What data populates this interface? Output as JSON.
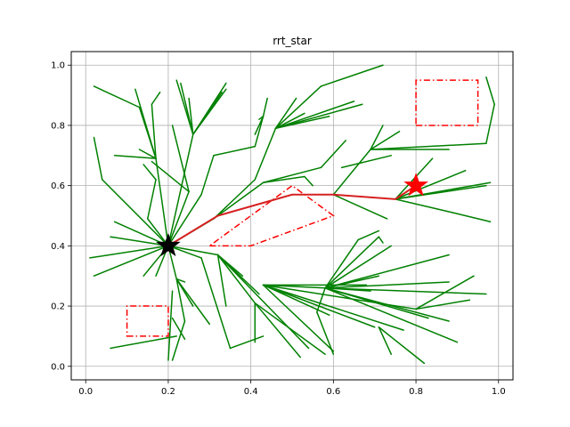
{
  "chart_data": {
    "type": "line",
    "title": "rrt_star",
    "xlabel": "",
    "ylabel": "",
    "xlim": [
      -0.035,
      1.035
    ],
    "ylim": [
      -0.045,
      1.045
    ],
    "xticks": [
      0.0,
      0.2,
      0.4,
      0.6,
      0.8,
      1.0
    ],
    "yticks": [
      0.0,
      0.2,
      0.4,
      0.6,
      0.8,
      1.0
    ],
    "xtick_labels": [
      "0.0",
      "0.2",
      "0.4",
      "0.6",
      "0.8",
      "1.0"
    ],
    "ytick_labels": [
      "0.0",
      "0.2",
      "0.4",
      "0.6",
      "0.8",
      "1.0"
    ],
    "grid": true,
    "colors": {
      "tree": "#008000",
      "path": "#d62020",
      "obstacle": "#ff0000",
      "goal": "#ff0000",
      "start": "#000000",
      "grid": "#b0b0b0"
    },
    "start": [
      0.2,
      0.4
    ],
    "goal": [
      0.8,
      0.6
    ],
    "path": [
      [
        0.2,
        0.4
      ],
      [
        0.32,
        0.5
      ],
      [
        0.5,
        0.57
      ],
      [
        0.6,
        0.57
      ],
      [
        0.75,
        0.555
      ],
      [
        0.8,
        0.6
      ]
    ],
    "obstacles": [
      {
        "shape": "rectangle",
        "points": [
          [
            0.1,
            0.1
          ],
          [
            0.2,
            0.1
          ],
          [
            0.2,
            0.2
          ],
          [
            0.1,
            0.2
          ]
        ]
      },
      {
        "shape": "rectangle",
        "points": [
          [
            0.8,
            0.8
          ],
          [
            0.95,
            0.8
          ],
          [
            0.95,
            0.95
          ],
          [
            0.8,
            0.95
          ]
        ]
      },
      {
        "shape": "polygon",
        "points": [
          [
            0.3,
            0.4
          ],
          [
            0.4,
            0.4
          ],
          [
            0.6,
            0.5
          ],
          [
            0.5,
            0.6
          ]
        ]
      }
    ],
    "tree_edges": [
      [
        [
          0.2,
          0.4
        ],
        [
          0.01,
          0.36
        ]
      ],
      [
        [
          0.2,
          0.4
        ],
        [
          0.02,
          0.3
        ]
      ],
      [
        [
          0.2,
          0.4
        ],
        [
          0.06,
          0.43
        ]
      ],
      [
        [
          0.2,
          0.4
        ],
        [
          0.07,
          0.48
        ]
      ],
      [
        [
          0.2,
          0.4
        ],
        [
          0.04,
          0.62
        ]
      ],
      [
        [
          0.04,
          0.62
        ],
        [
          0.02,
          0.76
        ]
      ],
      [
        [
          0.2,
          0.4
        ],
        [
          0.15,
          0.49
        ]
      ],
      [
        [
          0.15,
          0.49
        ],
        [
          0.17,
          0.62
        ]
      ],
      [
        [
          0.17,
          0.62
        ],
        [
          0.14,
          0.67
        ]
      ],
      [
        [
          0.2,
          0.4
        ],
        [
          0.17,
          0.69
        ]
      ],
      [
        [
          0.17,
          0.69
        ],
        [
          0.13,
          0.86
        ]
      ],
      [
        [
          0.13,
          0.86
        ],
        [
          0.02,
          0.93
        ]
      ],
      [
        [
          0.17,
          0.69
        ],
        [
          0.12,
          0.92
        ]
      ],
      [
        [
          0.17,
          0.69
        ],
        [
          0.16,
          0.87
        ]
      ],
      [
        [
          0.16,
          0.87
        ],
        [
          0.18,
          0.91
        ]
      ],
      [
        [
          0.17,
          0.69
        ],
        [
          0.13,
          0.72
        ]
      ],
      [
        [
          0.17,
          0.69
        ],
        [
          0.07,
          0.7
        ]
      ],
      [
        [
          0.2,
          0.4
        ],
        [
          0.25,
          0.58
        ]
      ],
      [
        [
          0.25,
          0.58
        ],
        [
          0.16,
          0.68
        ]
      ],
      [
        [
          0.25,
          0.58
        ],
        [
          0.21,
          0.8
        ]
      ],
      [
        [
          0.2,
          0.4
        ],
        [
          0.26,
          0.77
        ]
      ],
      [
        [
          0.26,
          0.77
        ],
        [
          0.22,
          0.95
        ]
      ],
      [
        [
          0.26,
          0.77
        ],
        [
          0.23,
          0.94
        ]
      ],
      [
        [
          0.26,
          0.77
        ],
        [
          0.25,
          0.89
        ]
      ],
      [
        [
          0.26,
          0.77
        ],
        [
          0.34,
          0.94
        ]
      ],
      [
        [
          0.26,
          0.77
        ],
        [
          0.33,
          0.91
        ]
      ],
      [
        [
          0.26,
          0.77
        ],
        [
          0.34,
          0.92
        ]
      ],
      [
        [
          0.26,
          0.77
        ],
        [
          0.31,
          0.87
        ]
      ],
      [
        [
          0.2,
          0.4
        ],
        [
          0.28,
          0.57
        ]
      ],
      [
        [
          0.28,
          0.57
        ],
        [
          0.31,
          0.7
        ]
      ],
      [
        [
          0.31,
          0.7
        ],
        [
          0.41,
          0.73
        ]
      ],
      [
        [
          0.41,
          0.73
        ],
        [
          0.43,
          0.83
        ]
      ],
      [
        [
          0.2,
          0.4
        ],
        [
          0.31,
          0.49
        ]
      ],
      [
        [
          0.31,
          0.49
        ],
        [
          0.41,
          0.62
        ]
      ],
      [
        [
          0.41,
          0.62
        ],
        [
          0.46,
          0.79
        ]
      ],
      [
        [
          0.46,
          0.79
        ],
        [
          0.53,
          0.84
        ]
      ],
      [
        [
          0.46,
          0.79
        ],
        [
          0.57,
          0.93
        ]
      ],
      [
        [
          0.57,
          0.93
        ],
        [
          0.72,
          1.0
        ]
      ],
      [
        [
          0.46,
          0.79
        ],
        [
          0.51,
          0.89
        ]
      ],
      [
        [
          0.46,
          0.79
        ],
        [
          0.65,
          0.88
        ]
      ],
      [
        [
          0.46,
          0.79
        ],
        [
          0.67,
          0.87
        ]
      ],
      [
        [
          0.46,
          0.79
        ],
        [
          0.59,
          0.83
        ]
      ],
      [
        [
          0.43,
          0.83
        ],
        [
          0.41,
          0.77
        ]
      ],
      [
        [
          0.43,
          0.83
        ],
        [
          0.44,
          0.89
        ]
      ],
      [
        [
          0.43,
          0.83
        ],
        [
          0.42,
          0.82
        ]
      ],
      [
        [
          0.31,
          0.49
        ],
        [
          0.43,
          0.61
        ]
      ],
      [
        [
          0.43,
          0.61
        ],
        [
          0.57,
          0.66
        ]
      ],
      [
        [
          0.57,
          0.66
        ],
        [
          0.63,
          0.75
        ]
      ],
      [
        [
          0.43,
          0.61
        ],
        [
          0.53,
          0.63
        ]
      ],
      [
        [
          0.53,
          0.63
        ],
        [
          0.55,
          0.6
        ]
      ],
      [
        [
          0.6,
          0.57
        ],
        [
          0.73,
          0.49
        ]
      ],
      [
        [
          0.6,
          0.57
        ],
        [
          0.69,
          0.72
        ]
      ],
      [
        [
          0.69,
          0.72
        ],
        [
          0.72,
          0.8
        ]
      ],
      [
        [
          0.69,
          0.72
        ],
        [
          0.76,
          0.78
        ]
      ],
      [
        [
          0.69,
          0.72
        ],
        [
          0.97,
          0.74
        ]
      ],
      [
        [
          0.97,
          0.74
        ],
        [
          0.99,
          0.87
        ]
      ],
      [
        [
          0.99,
          0.87
        ],
        [
          0.97,
          0.96
        ]
      ],
      [
        [
          0.69,
          0.72
        ],
        [
          0.88,
          0.72
        ]
      ],
      [
        [
          0.62,
          0.66
        ],
        [
          0.74,
          0.7
        ]
      ],
      [
        [
          0.75,
          0.555
        ],
        [
          0.92,
          0.65
        ]
      ],
      [
        [
          0.75,
          0.555
        ],
        [
          0.98,
          0.61
        ]
      ],
      [
        [
          0.75,
          0.555
        ],
        [
          0.97,
          0.6
        ]
      ],
      [
        [
          0.75,
          0.555
        ],
        [
          0.89,
          0.51
        ]
      ],
      [
        [
          0.89,
          0.51
        ],
        [
          0.98,
          0.48
        ]
      ],
      [
        [
          0.75,
          0.555
        ],
        [
          0.84,
          0.69
        ]
      ],
      [
        [
          0.2,
          0.4
        ],
        [
          0.32,
          0.37
        ]
      ],
      [
        [
          0.32,
          0.37
        ],
        [
          0.34,
          0.2
        ]
      ],
      [
        [
          0.32,
          0.37
        ],
        [
          0.42,
          0.24
        ]
      ],
      [
        [
          0.32,
          0.37
        ],
        [
          0.38,
          0.3
        ]
      ],
      [
        [
          0.32,
          0.37
        ],
        [
          0.54,
          0.06
        ]
      ],
      [
        [
          0.32,
          0.37
        ],
        [
          0.41,
          0.21
        ]
      ],
      [
        [
          0.41,
          0.21
        ],
        [
          0.52,
          0.03
        ]
      ],
      [
        [
          0.41,
          0.21
        ],
        [
          0.41,
          0.08
        ]
      ],
      [
        [
          0.41,
          0.21
        ],
        [
          0.58,
          0.04
        ]
      ],
      [
        [
          0.2,
          0.4
        ],
        [
          0.28,
          0.36
        ]
      ],
      [
        [
          0.28,
          0.36
        ],
        [
          0.35,
          0.06
        ]
      ],
      [
        [
          0.35,
          0.06
        ],
        [
          0.43,
          0.1
        ]
      ],
      [
        [
          0.2,
          0.4
        ],
        [
          0.14,
          0.3
        ]
      ],
      [
        [
          0.2,
          0.4
        ],
        [
          0.22,
          0.29
        ]
      ],
      [
        [
          0.22,
          0.29
        ],
        [
          0.24,
          0.15
        ]
      ],
      [
        [
          0.24,
          0.15
        ],
        [
          0.21,
          0.02
        ]
      ],
      [
        [
          0.22,
          0.29
        ],
        [
          0.3,
          0.14
        ]
      ],
      [
        [
          0.22,
          0.29
        ],
        [
          0.26,
          0.2
        ]
      ],
      [
        [
          0.22,
          0.29
        ],
        [
          0.24,
          0.28
        ]
      ],
      [
        [
          0.21,
          0.25
        ],
        [
          0.2,
          0.02
        ]
      ],
      [
        [
          0.22,
          0.1
        ],
        [
          0.06,
          0.06
        ]
      ],
      [
        [
          0.21,
          0.16
        ],
        [
          0.24,
          0.09
        ]
      ],
      [
        [
          0.2,
          0.4
        ],
        [
          0.17,
          0.3
        ]
      ],
      [
        [
          0.43,
          0.27
        ],
        [
          0.59,
          0.17
        ]
      ],
      [
        [
          0.43,
          0.27
        ],
        [
          0.6,
          0.05
        ]
      ],
      [
        [
          0.43,
          0.27
        ],
        [
          0.7,
          0.13
        ]
      ],
      [
        [
          0.43,
          0.27
        ],
        [
          0.77,
          0.12
        ]
      ],
      [
        [
          0.43,
          0.27
        ],
        [
          0.8,
          0.19
        ]
      ],
      [
        [
          0.43,
          0.27
        ],
        [
          0.68,
          0.27
        ]
      ],
      [
        [
          0.43,
          0.27
        ],
        [
          0.58,
          0.26
        ]
      ],
      [
        [
          0.58,
          0.26
        ],
        [
          0.71,
          0.3
        ]
      ],
      [
        [
          0.58,
          0.26
        ],
        [
          0.74,
          0.4
        ]
      ],
      [
        [
          0.58,
          0.26
        ],
        [
          0.88,
          0.37
        ]
      ],
      [
        [
          0.58,
          0.26
        ],
        [
          0.66,
          0.42
        ]
      ],
      [
        [
          0.66,
          0.42
        ],
        [
          0.71,
          0.45
        ]
      ],
      [
        [
          0.58,
          0.26
        ],
        [
          0.97,
          0.24
        ]
      ],
      [
        [
          0.58,
          0.26
        ],
        [
          0.88,
          0.28
        ]
      ],
      [
        [
          0.58,
          0.26
        ],
        [
          0.71,
          0.43
        ]
      ],
      [
        [
          0.71,
          0.43
        ],
        [
          0.72,
          0.41
        ]
      ],
      [
        [
          0.58,
          0.26
        ],
        [
          0.69,
          0.25
        ]
      ],
      [
        [
          0.58,
          0.26
        ],
        [
          0.88,
          0.15
        ]
      ],
      [
        [
          0.58,
          0.26
        ],
        [
          0.56,
          0.18
        ]
      ],
      [
        [
          0.56,
          0.18
        ],
        [
          0.6,
          0.04
        ]
      ],
      [
        [
          0.71,
          0.13
        ],
        [
          0.74,
          0.04
        ]
      ],
      [
        [
          0.71,
          0.13
        ],
        [
          0.82,
          0.01
        ]
      ],
      [
        [
          0.8,
          0.19
        ],
        [
          0.93,
          0.22
        ]
      ],
      [
        [
          0.8,
          0.19
        ],
        [
          0.94,
          0.3
        ]
      ],
      [
        [
          0.58,
          0.26
        ],
        [
          0.83,
          0.16
        ]
      ],
      [
        [
          0.58,
          0.26
        ],
        [
          0.9,
          0.08
        ]
      ]
    ]
  }
}
